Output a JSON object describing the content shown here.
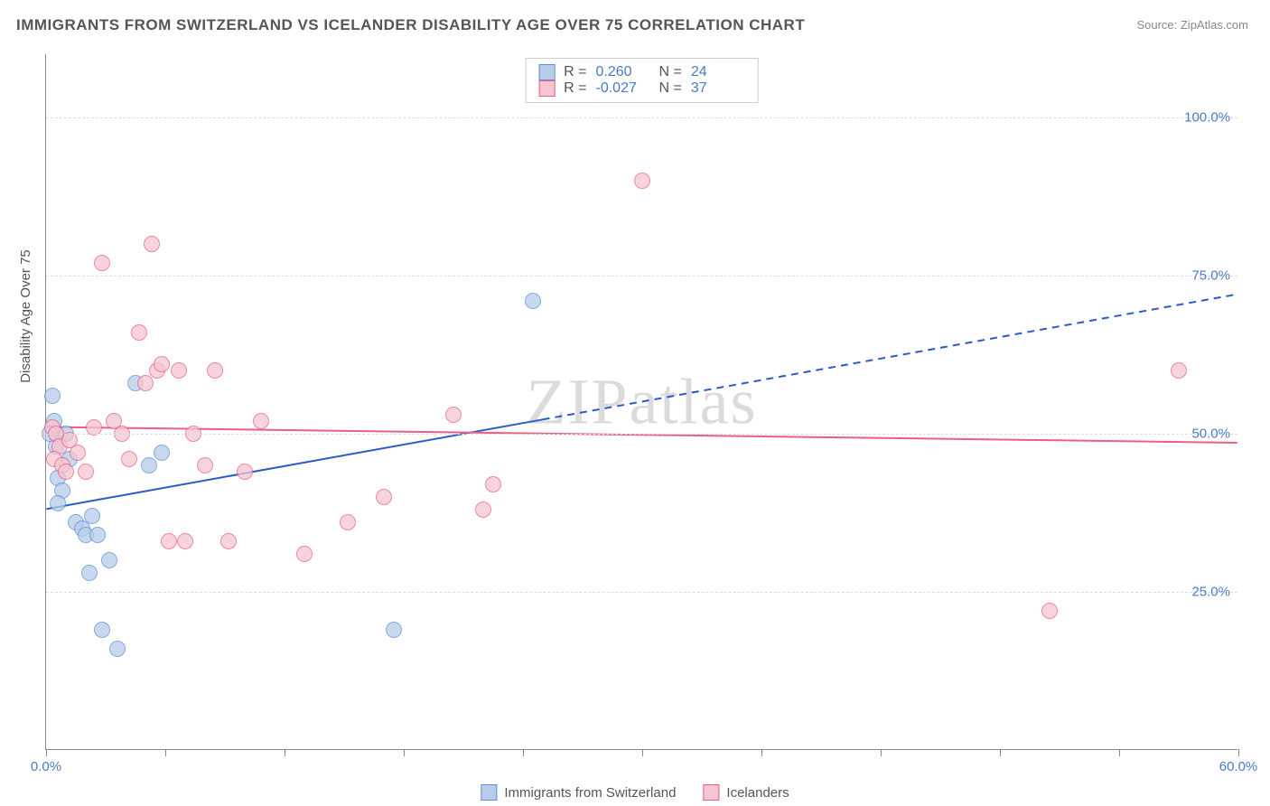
{
  "title": "IMMIGRANTS FROM SWITZERLAND VS ICELANDER DISABILITY AGE OVER 75 CORRELATION CHART",
  "source_prefix": "Source: ",
  "source_name": "ZipAtlas.com",
  "watermark": "ZIPatlas",
  "ylabel": "Disability Age Over 75",
  "chart": {
    "type": "scatter",
    "xlim": [
      0,
      60
    ],
    "ylim": [
      0,
      110
    ],
    "yticks": [
      {
        "v": 25,
        "label": "25.0%"
      },
      {
        "v": 50,
        "label": "50.0%"
      },
      {
        "v": 75,
        "label": "75.0%"
      },
      {
        "v": 100,
        "label": "100.0%"
      }
    ],
    "xticks": [
      {
        "v": 0,
        "label": "0.0%"
      },
      {
        "v": 6,
        "label": ""
      },
      {
        "v": 12,
        "label": ""
      },
      {
        "v": 18,
        "label": ""
      },
      {
        "v": 24,
        "label": ""
      },
      {
        "v": 30,
        "label": ""
      },
      {
        "v": 36,
        "label": ""
      },
      {
        "v": 42,
        "label": ""
      },
      {
        "v": 48,
        "label": ""
      },
      {
        "v": 54,
        "label": ""
      },
      {
        "v": 60,
        "label": "60.0%"
      }
    ],
    "grid_color": "#dddddd",
    "axis_color": "#888888",
    "background_color": "#ffffff",
    "series": [
      {
        "name": "Immigrants from Switzerland",
        "fill": "#b6cce9",
        "stroke": "#5b8fd6",
        "marker_radius": 9,
        "opacity": 0.75,
        "r_label": "R =",
        "r_value": "0.260",
        "n_label": "N =",
        "n_value": "24",
        "trend": {
          "x1": 0,
          "y1": 38,
          "x2": 60,
          "y2": 72,
          "solid_end_x": 25,
          "color": "#2a5bc7",
          "width": 2
        },
        "points": [
          {
            "x": 0.3,
            "y": 56
          },
          {
            "x": 0.5,
            "y": 50
          },
          {
            "x": 0.5,
            "y": 48
          },
          {
            "x": 0.4,
            "y": 52
          },
          {
            "x": 0.6,
            "y": 43
          },
          {
            "x": 0.8,
            "y": 41
          },
          {
            "x": 1.2,
            "y": 46
          },
          {
            "x": 0.6,
            "y": 39
          },
          {
            "x": 1.0,
            "y": 50
          },
          {
            "x": 1.5,
            "y": 36
          },
          {
            "x": 1.8,
            "y": 35
          },
          {
            "x": 2.0,
            "y": 34
          },
          {
            "x": 2.3,
            "y": 37
          },
          {
            "x": 2.6,
            "y": 34
          },
          {
            "x": 2.2,
            "y": 28
          },
          {
            "x": 2.8,
            "y": 19
          },
          {
            "x": 3.2,
            "y": 30
          },
          {
            "x": 3.6,
            "y": 16
          },
          {
            "x": 4.5,
            "y": 58
          },
          {
            "x": 5.2,
            "y": 45
          },
          {
            "x": 5.8,
            "y": 47
          },
          {
            "x": 17.5,
            "y": 19
          },
          {
            "x": 24.5,
            "y": 71
          },
          {
            "x": 0.2,
            "y": 50
          }
        ]
      },
      {
        "name": "Icelanders",
        "fill": "#f5c5d0",
        "stroke": "#e85f87",
        "marker_radius": 9,
        "opacity": 0.75,
        "r_label": "R =",
        "r_value": "-0.027",
        "n_label": "N =",
        "n_value": "37",
        "trend": {
          "x1": 0,
          "y1": 51,
          "x2": 60,
          "y2": 48.5,
          "solid_end_x": 60,
          "color": "#e85f87",
          "width": 2
        },
        "points": [
          {
            "x": 0.3,
            "y": 51
          },
          {
            "x": 0.5,
            "y": 50
          },
          {
            "x": 0.7,
            "y": 48
          },
          {
            "x": 0.4,
            "y": 46
          },
          {
            "x": 0.8,
            "y": 45
          },
          {
            "x": 1.0,
            "y": 44
          },
          {
            "x": 1.2,
            "y": 49
          },
          {
            "x": 1.6,
            "y": 47
          },
          {
            "x": 2.0,
            "y": 44
          },
          {
            "x": 2.4,
            "y": 51
          },
          {
            "x": 2.8,
            "y": 77
          },
          {
            "x": 3.4,
            "y": 52
          },
          {
            "x": 3.8,
            "y": 50
          },
          {
            "x": 4.2,
            "y": 46
          },
          {
            "x": 4.7,
            "y": 66
          },
          {
            "x": 5.0,
            "y": 58
          },
          {
            "x": 5.3,
            "y": 80
          },
          {
            "x": 5.6,
            "y": 60
          },
          {
            "x": 5.8,
            "y": 61
          },
          {
            "x": 6.2,
            "y": 33
          },
          {
            "x": 6.7,
            "y": 60
          },
          {
            "x": 7.0,
            "y": 33
          },
          {
            "x": 7.4,
            "y": 50
          },
          {
            "x": 8.0,
            "y": 45
          },
          {
            "x": 8.5,
            "y": 60
          },
          {
            "x": 9.2,
            "y": 33
          },
          {
            "x": 10.0,
            "y": 44
          },
          {
            "x": 10.8,
            "y": 52
          },
          {
            "x": 13.0,
            "y": 31
          },
          {
            "x": 15.2,
            "y": 36
          },
          {
            "x": 17.0,
            "y": 40
          },
          {
            "x": 20.5,
            "y": 53
          },
          {
            "x": 22.0,
            "y": 38
          },
          {
            "x": 22.5,
            "y": 42
          },
          {
            "x": 30.0,
            "y": 90
          },
          {
            "x": 50.5,
            "y": 22
          },
          {
            "x": 57.0,
            "y": 60
          }
        ]
      }
    ]
  }
}
